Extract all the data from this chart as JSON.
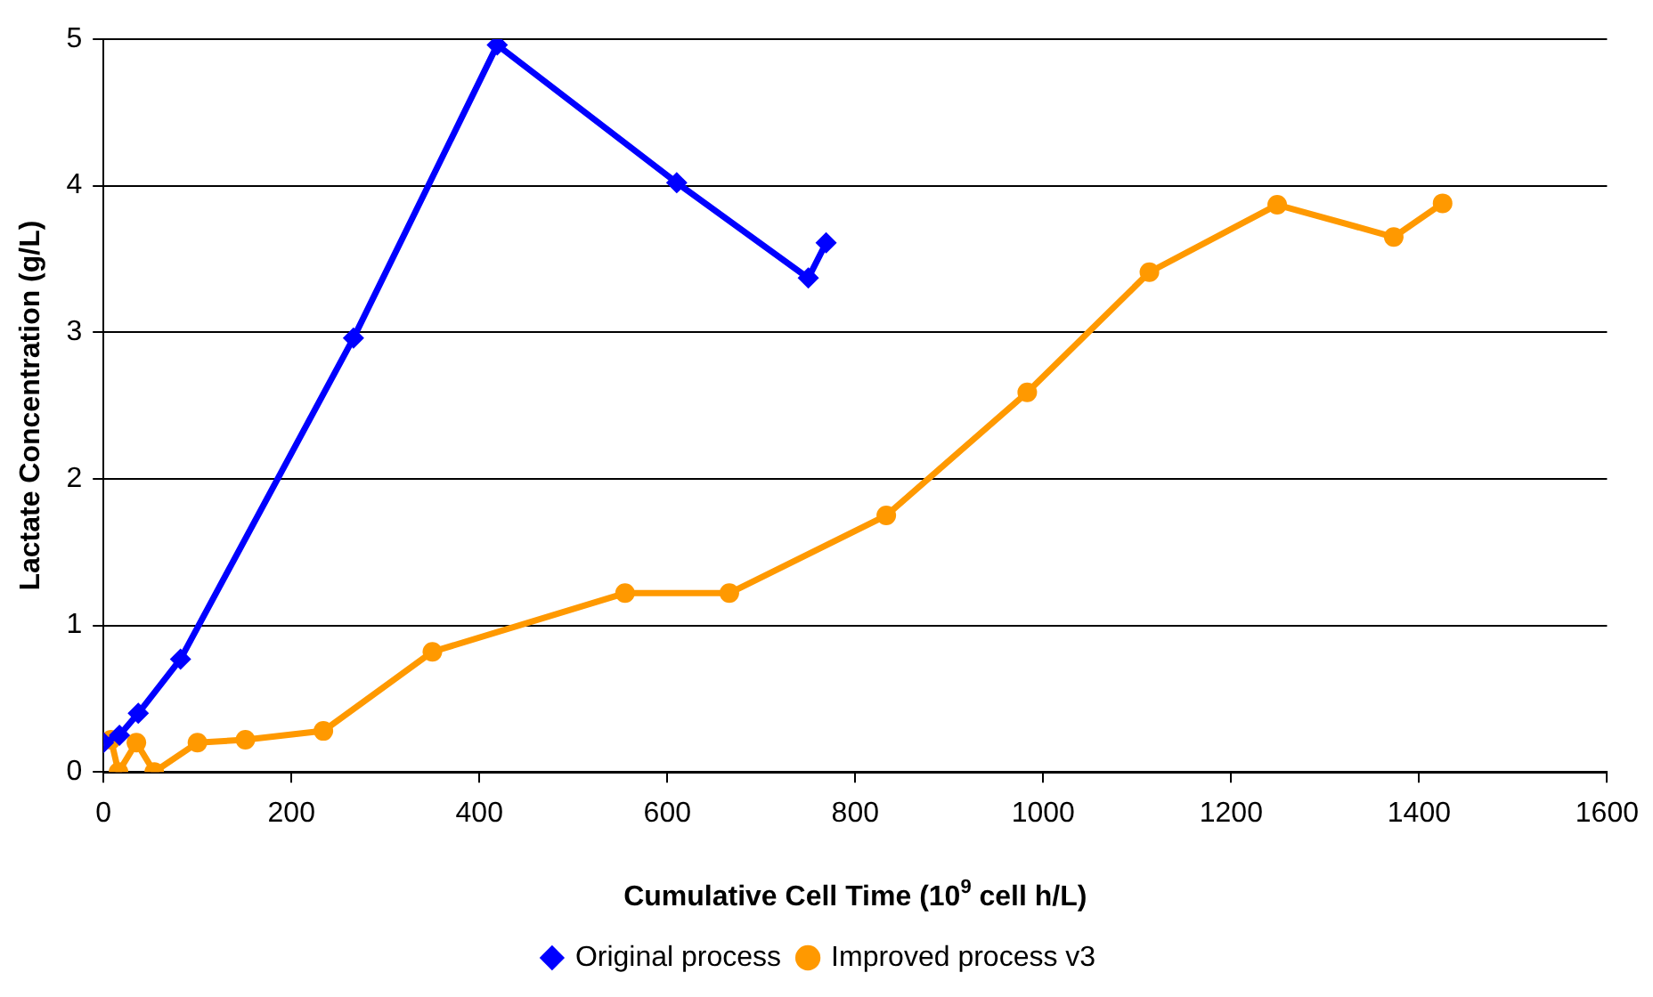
{
  "chart_data": {
    "type": "line",
    "xlabel": "Cumulative Cell Time (10$^{9}$ cell h/L)",
    "ylabel": "Lactate Concentration (g/L)",
    "xlim": [
      0,
      1600
    ],
    "xticks": [
      0,
      200,
      400,
      600,
      800,
      1000,
      1200,
      1400,
      1600
    ],
    "ylim": [
      0,
      5
    ],
    "yticks": [
      0,
      1,
      2,
      3,
      4,
      5
    ],
    "grid": "y",
    "legend": "bottom",
    "series": [
      {
        "name": "Original process",
        "color": "#0000ff",
        "marker": "diamond",
        "x": [
          0,
          17,
          37,
          82,
          266,
          419,
          610,
          750,
          769
        ],
        "values": [
          0.2,
          0.25,
          0.4,
          0.77,
          2.96,
          4.96,
          4.02,
          3.37,
          3.61
        ]
      },
      {
        "name": "Improved process v3",
        "color": "#ff9900",
        "marker": "circle",
        "x": [
          8,
          16,
          35,
          54,
          100,
          151,
          234,
          350,
          555,
          666,
          833,
          983,
          1113,
          1249,
          1373,
          1425
        ],
        "values": [
          0.22,
          0,
          0.2,
          0,
          0.2,
          0.22,
          0.28,
          0.82,
          1.22,
          1.22,
          1.75,
          2.59,
          3.41,
          3.87,
          3.65,
          3.88
        ]
      }
    ]
  }
}
